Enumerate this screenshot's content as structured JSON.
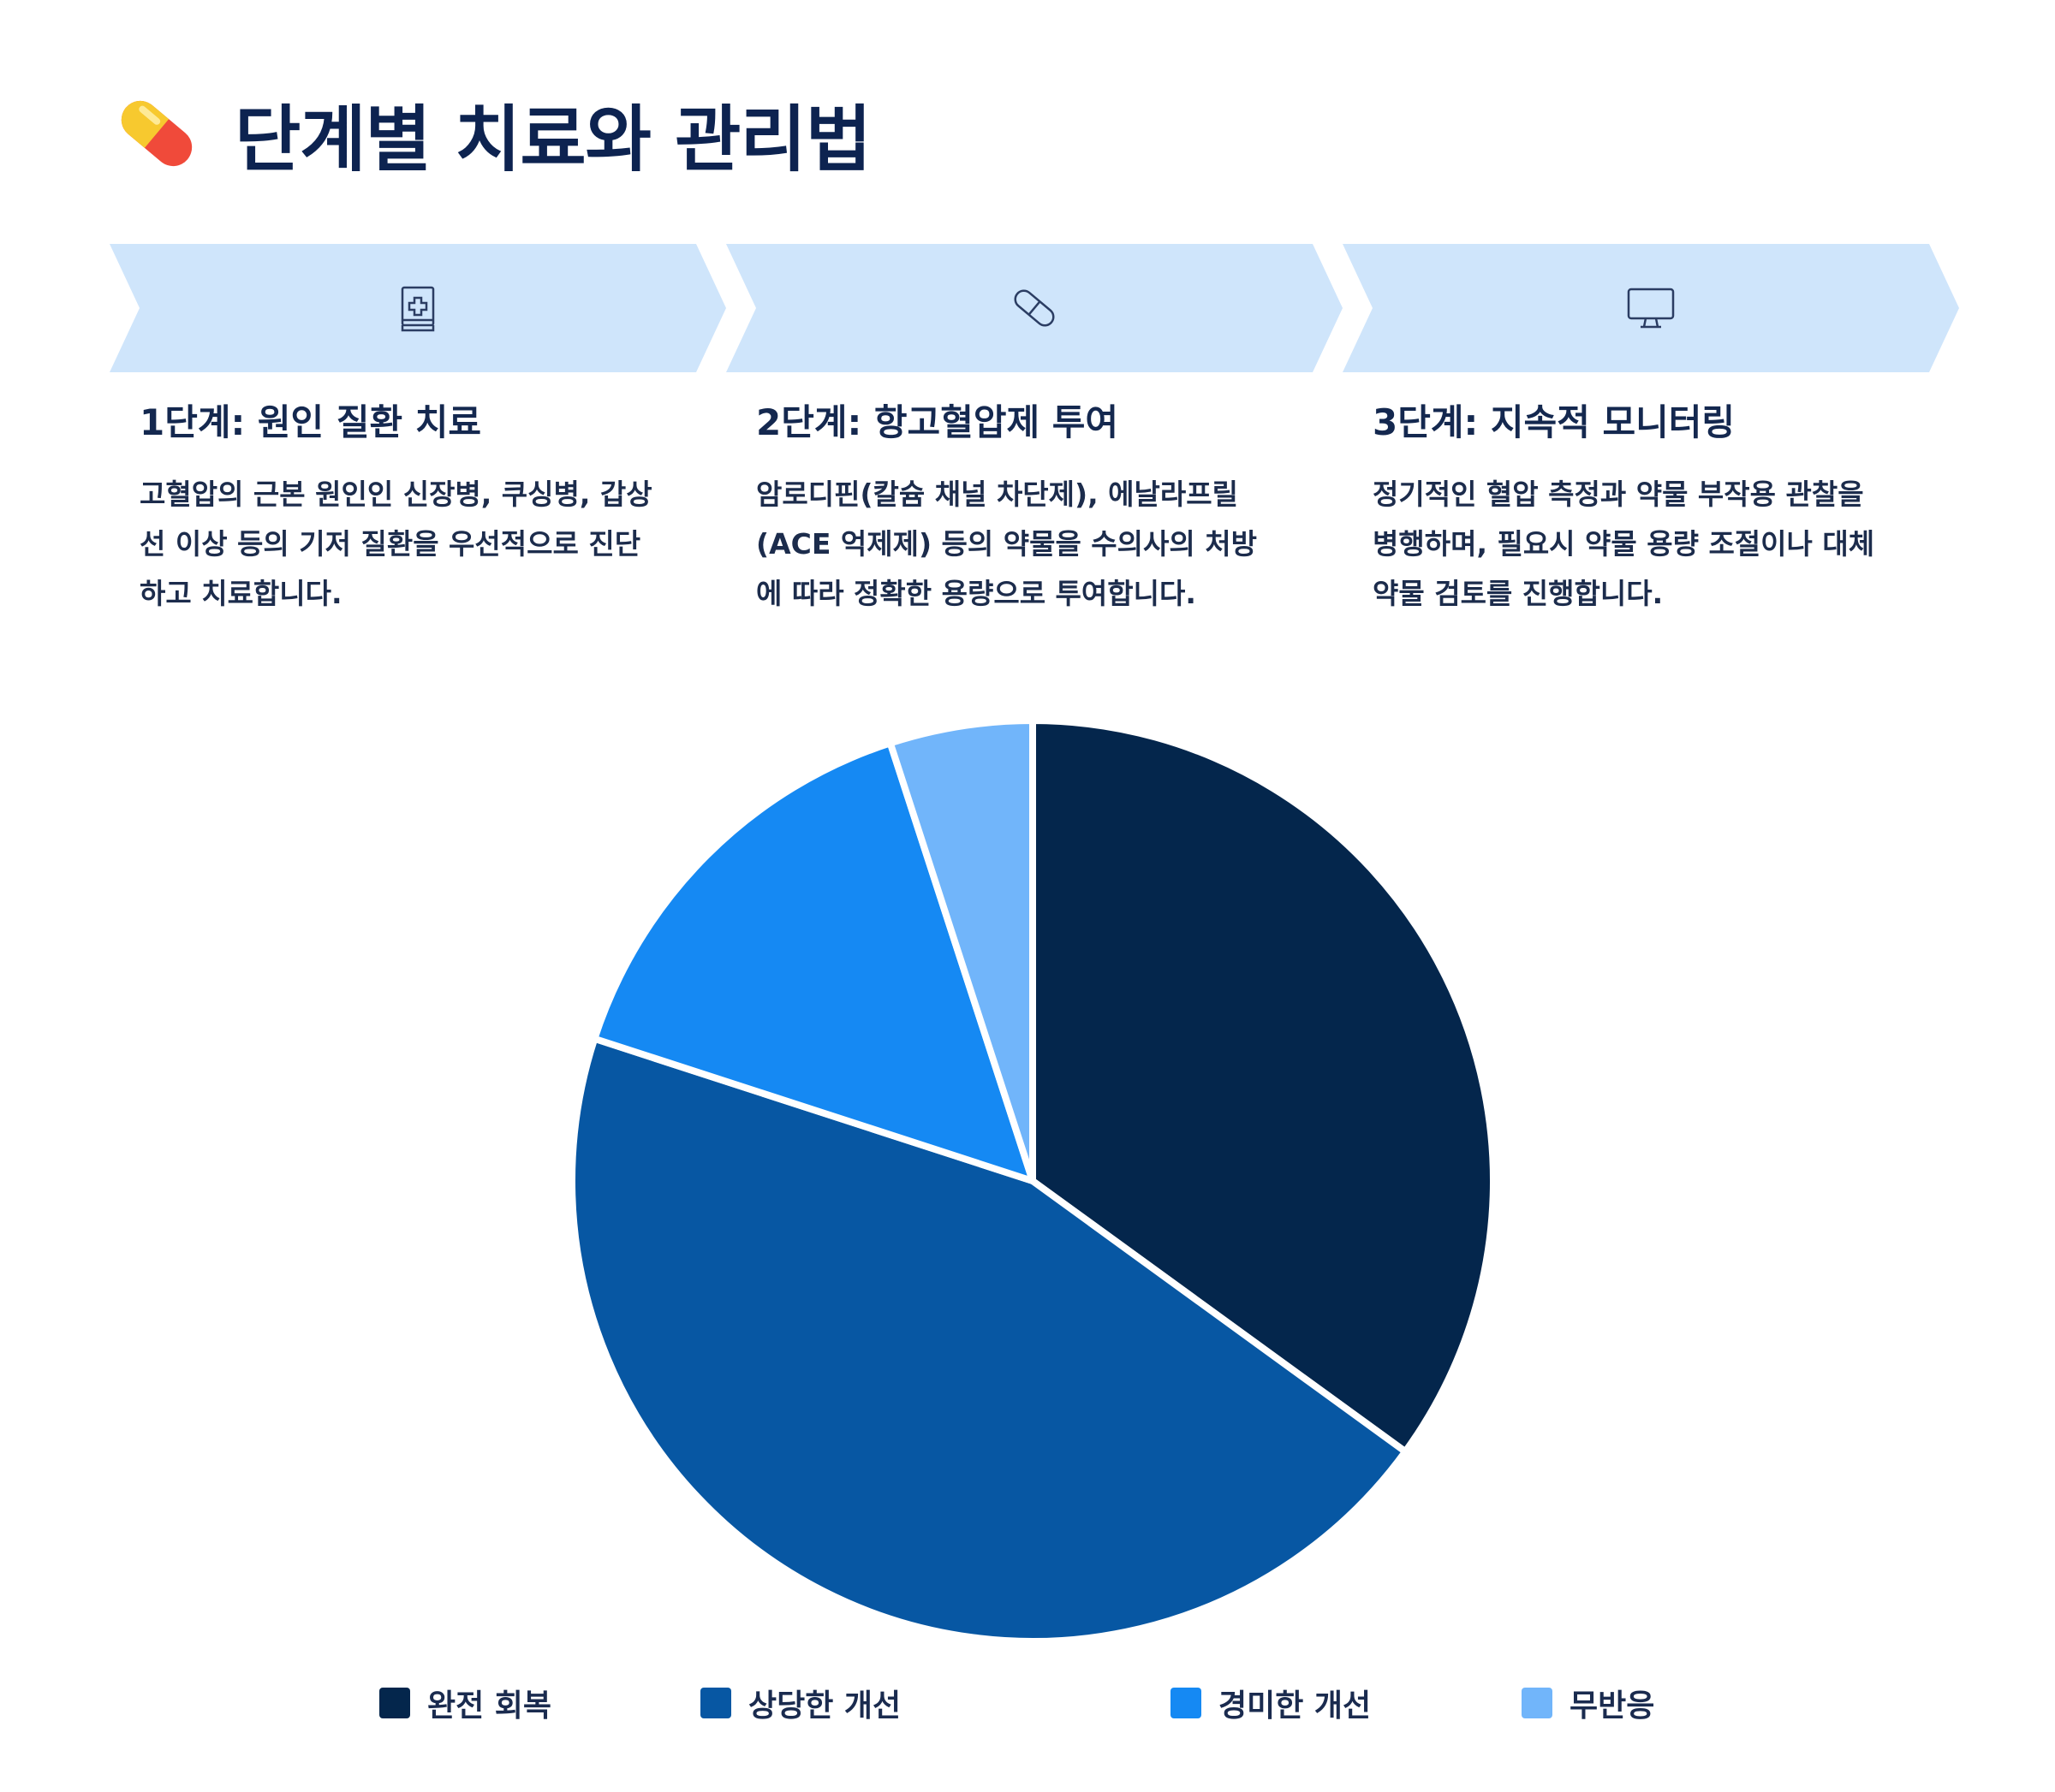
{
  "page": {
    "title": "단계별 치료와 관리법",
    "title_icon": "pill-icon"
  },
  "steps": [
    {
      "icon": "medical-book-icon",
      "title": "1단계: 원인 질환 치료",
      "desc_lines": [
        "고혈압의 근본 원인인 신장병, 쿠싱병, 갑상",
        "선 이상 등의 기저 질환을 우선적으로 진단",
        "하고 치료합니다."
      ]
    },
    {
      "icon": "capsule-icon",
      "title": "2단계: 항고혈압제 투여",
      "desc_lines": [
        "암로디핀(칼슘 채널 차단제), 에날라프릴",
        "(ACE 억제제) 등의 약물을 수의사의 처방",
        "에 따라 정확한 용량으로 투여합니다."
      ]
    },
    {
      "icon": "monitor-icon",
      "title": "3단계: 지속적 모니터링",
      "desc_lines": [
        "정기적인 혈압 측정과 약물 부작용 관찰을",
        "병행하며, 필요시 약물 용량 조절이나 대체",
        "약물 검토를 진행합니다."
      ]
    }
  ],
  "colors": {
    "step_bg": "#cfe5fb",
    "step_icon": "#2b3d63"
  },
  "chart_data": {
    "type": "pie",
    "title": "",
    "categories": [
      "완전 회복",
      "상당한 개선",
      "경미한 개선",
      "무반응"
    ],
    "values": [
      35,
      45,
      15,
      5
    ],
    "colors": [
      "#04264c",
      "#0757a3",
      "#1589f3",
      "#71b5fa"
    ],
    "start_angle_deg": 0,
    "direction": "clockwise",
    "legend_position": "bottom"
  }
}
